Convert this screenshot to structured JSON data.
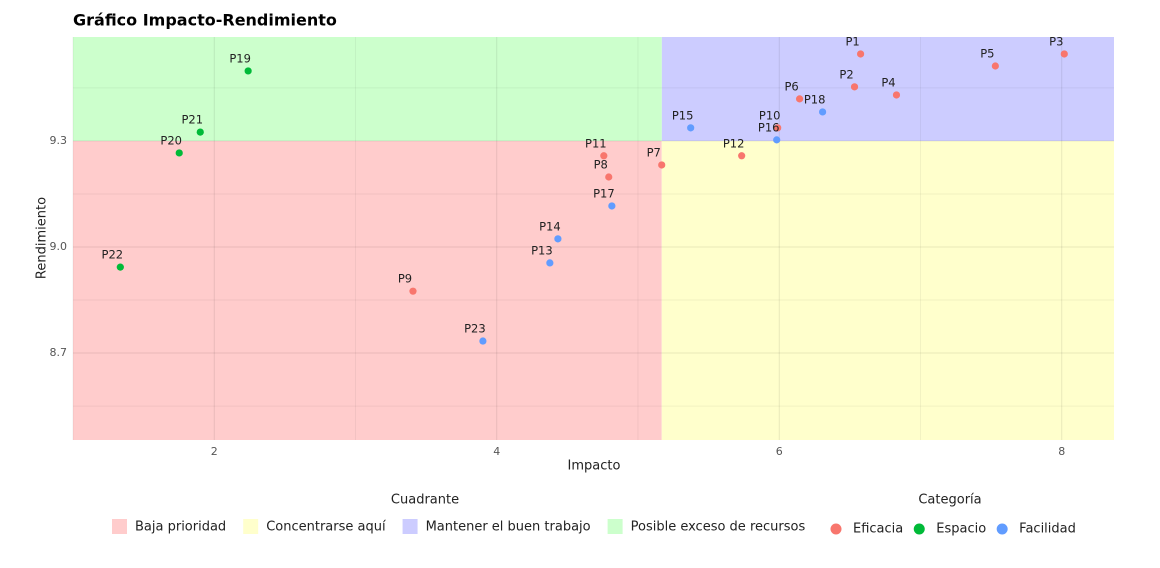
{
  "chart_data": {
    "type": "scatter",
    "title": "Gráfico Impacto-Rendimiento",
    "x_label": "Impacto",
    "y_label": "Rendimiento",
    "xlim": [
      1.0,
      8.37
    ],
    "ylim": [
      8.454,
      9.594
    ],
    "xticks": [
      2,
      4,
      6,
      8
    ],
    "yticks": [
      {
        "value": 8.7,
        "label": "8.7"
      },
      {
        "value": 9,
        "label": "9.0"
      },
      {
        "value": 9.3,
        "label": "9.3"
      }
    ],
    "grid": true,
    "minor_grid": true,
    "x_split": 5.168,
    "y_split": 9.3,
    "quadrant_legend_title": "Cuadrante",
    "quadrants": [
      {
        "name": "Baja prioridad",
        "color": "#ffcccc",
        "x": "low",
        "y": "low"
      },
      {
        "name": "Concentrarse aquí",
        "color": "#ffffcc",
        "x": "high",
        "y": "low"
      },
      {
        "name": "Mantener el buen trabajo",
        "color": "#ccccff",
        "x": "high",
        "y": "high"
      },
      {
        "name": "Posible exceso de recursos",
        "color": "#ccffcc",
        "x": "low",
        "y": "high"
      }
    ],
    "legend_title": "Categoría",
    "series": [
      {
        "name": "Eficacia",
        "color": "#f8766d",
        "labels": [
          "P1",
          "P3",
          "P5",
          "P2",
          "P4",
          "P6",
          "P10",
          "P12",
          "P7",
          "P11",
          "P8",
          "P9"
        ],
        "x": [
          6.576,
          8.018,
          7.53,
          6.533,
          6.83,
          6.144,
          5.989,
          5.734,
          5.168,
          4.758,
          4.793,
          3.407
        ],
        "values": [
          9.546,
          9.546,
          9.512,
          9.453,
          9.43,
          9.419,
          9.337,
          9.258,
          9.232,
          9.258,
          9.198,
          8.875
        ]
      },
      {
        "name": "Espacio",
        "color": "#00ba38",
        "labels": [
          "P19",
          "P21",
          "P20",
          "P22"
        ],
        "x": [
          2.24,
          1.901,
          1.752,
          1.335
        ],
        "values": [
          9.498,
          9.325,
          9.266,
          8.943
        ]
      },
      {
        "name": "Facilidad",
        "color": "#619cff",
        "labels": [
          "P18",
          "P15",
          "P16",
          "P17",
          "P14",
          "P13",
          "P23"
        ],
        "x": [
          6.307,
          5.373,
          5.982,
          4.815,
          4.433,
          4.376,
          3.902
        ],
        "values": [
          9.382,
          9.337,
          9.303,
          9.116,
          9.023,
          8.955,
          8.734
        ]
      }
    ]
  }
}
